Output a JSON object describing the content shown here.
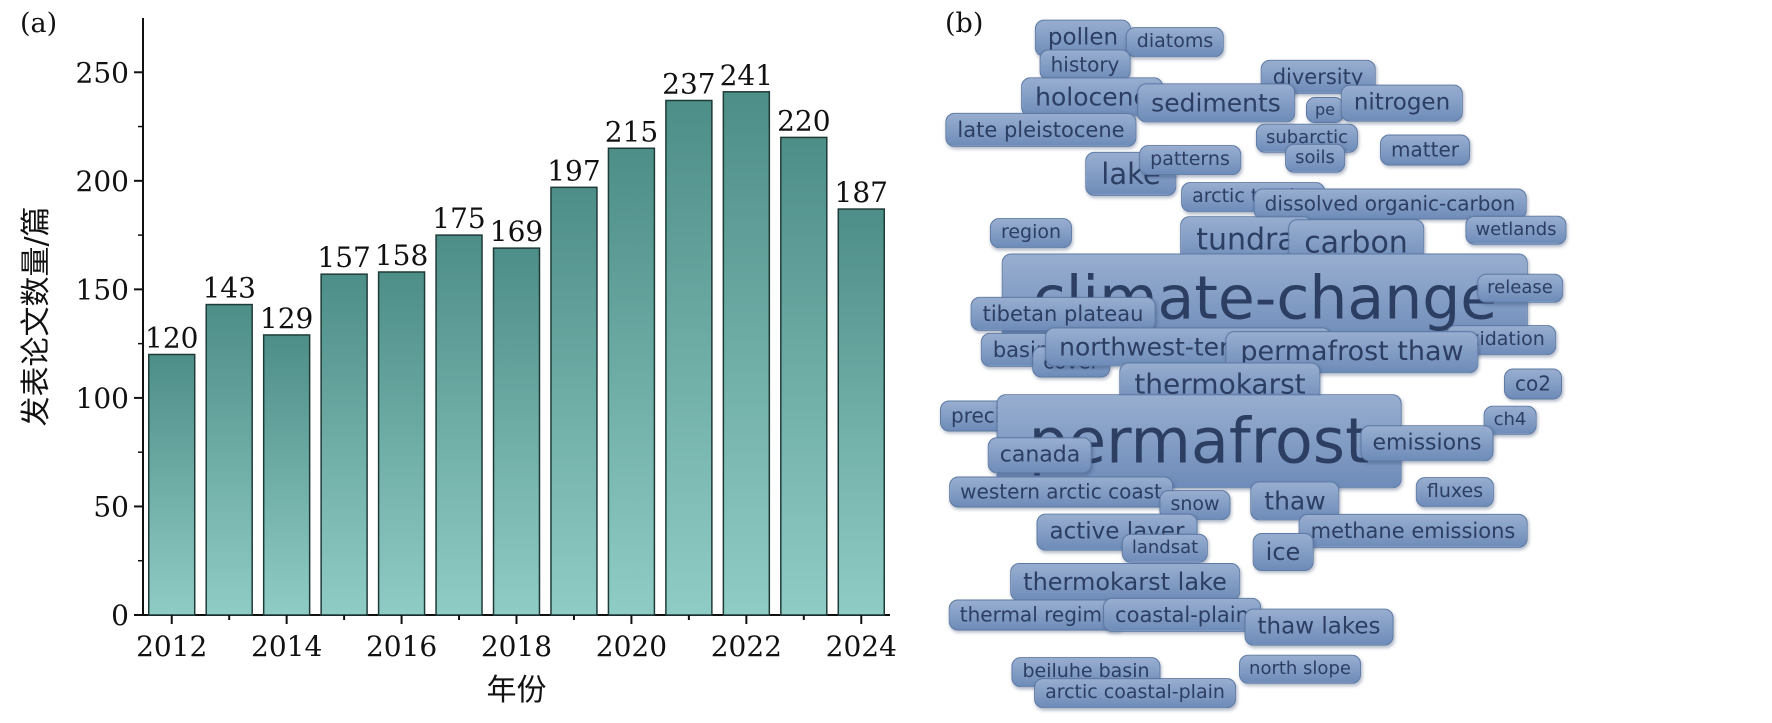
{
  "panels": {
    "a_label": "(a)",
    "b_label": "(b)"
  },
  "chart_data": [
    {
      "type": "bar",
      "categories": [
        "2012",
        "2013",
        "2014",
        "2015",
        "2016",
        "2017",
        "2018",
        "2019",
        "2020",
        "2021",
        "2022",
        "2023",
        "2024"
      ],
      "values": [
        120,
        143,
        129,
        157,
        158,
        175,
        169,
        197,
        215,
        237,
        241,
        220,
        187
      ],
      "xlabel": "年份",
      "ylabel": "发表论文数量/篇",
      "ylim": [
        0,
        275
      ],
      "yticks": [
        0,
        50,
        100,
        150,
        200,
        250
      ],
      "xtick_labels": [
        "2012",
        "2014",
        "2016",
        "2018",
        "2020",
        "2022",
        "2024"
      ],
      "grid": false,
      "bar_color_top": "#4e8e88",
      "bar_color_bottom": "#8fccc5"
    },
    {
      "type": "word_cloud",
      "color_fill": "#8aa3c9",
      "color_text": "#2c3e62",
      "words": [
        {
          "text": "pollen",
          "weight": 0.18
        },
        {
          "text": "diatoms",
          "weight": 0.1
        },
        {
          "text": "history",
          "weight": 0.12
        },
        {
          "text": "diversity",
          "weight": 0.14
        },
        {
          "text": "holocene",
          "weight": 0.22
        },
        {
          "text": "sediments",
          "weight": 0.22
        },
        {
          "text": "pe",
          "weight": 0.05
        },
        {
          "text": "nitrogen",
          "weight": 0.18
        },
        {
          "text": "late pleistocene",
          "weight": 0.14
        },
        {
          "text": "subarctic",
          "weight": 0.08
        },
        {
          "text": "matter",
          "weight": 0.12
        },
        {
          "text": "lake",
          "weight": 0.32
        },
        {
          "text": "patterns",
          "weight": 0.1
        },
        {
          "text": "soils",
          "weight": 0.08
        },
        {
          "text": "arctic tundra",
          "weight": 0.1
        },
        {
          "text": "dissolved organic-carbon",
          "weight": 0.12
        },
        {
          "text": "region",
          "weight": 0.1
        },
        {
          "text": "tundra",
          "weight": 0.34
        },
        {
          "text": "carbon",
          "weight": 0.34
        },
        {
          "text": "wetlands",
          "weight": 0.08
        },
        {
          "text": "climate-change",
          "weight": 0.95
        },
        {
          "text": "release",
          "weight": 0.08
        },
        {
          "text": "tibetan plateau",
          "weight": 0.14
        },
        {
          "text": "oxidation",
          "weight": 0.1
        },
        {
          "text": "basin",
          "weight": 0.14
        },
        {
          "text": "cover",
          "weight": 0.12
        },
        {
          "text": "northwest-territories",
          "weight": 0.22
        },
        {
          "text": "permafrost thaw",
          "weight": 0.28
        },
        {
          "text": "co2",
          "weight": 0.12
        },
        {
          "text": "thermokarst",
          "weight": 0.3
        },
        {
          "text": "precipitation",
          "weight": 0.12
        },
        {
          "text": "ch4",
          "weight": 0.08
        },
        {
          "text": "permafrost",
          "weight": 1.0
        },
        {
          "text": "emissions",
          "weight": 0.16
        },
        {
          "text": "canada",
          "weight": 0.16
        },
        {
          "text": "western arctic coast",
          "weight": 0.12
        },
        {
          "text": "snow",
          "weight": 0.1
        },
        {
          "text": "thaw",
          "weight": 0.22
        },
        {
          "text": "fluxes",
          "weight": 0.1
        },
        {
          "text": "active layer",
          "weight": 0.18
        },
        {
          "text": "methane emissions",
          "weight": 0.14
        },
        {
          "text": "landsat",
          "weight": 0.08
        },
        {
          "text": "ice",
          "weight": 0.2
        },
        {
          "text": "thermokarst lake",
          "weight": 0.2
        },
        {
          "text": "thermal regime",
          "weight": 0.12
        },
        {
          "text": "coastal-plain",
          "weight": 0.14
        },
        {
          "text": "thaw lakes",
          "weight": 0.18
        },
        {
          "text": "beiluhe basin",
          "weight": 0.1
        },
        {
          "text": "north slope",
          "weight": 0.08
        },
        {
          "text": "arctic coastal-plain",
          "weight": 0.1
        }
      ]
    }
  ]
}
